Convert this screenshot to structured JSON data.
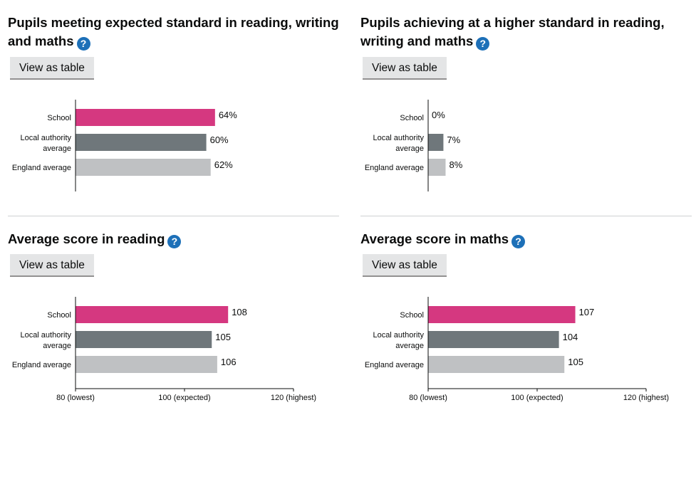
{
  "help_icon_glyph": "?",
  "colors": {
    "school": "#d53880",
    "local": "#6f777b",
    "england": "#bfc1c3",
    "help": "#1d70b8"
  },
  "charts": [
    {
      "title": "Pupils meeting expected standard in reading, writing and maths",
      "button_label": "View as table",
      "chart_data": {
        "type": "bar",
        "orientation": "horizontal",
        "categories": [
          "School",
          "Local authority average",
          "England average"
        ],
        "values": [
          64,
          60,
          62
        ],
        "value_labels": [
          "64%",
          "60%",
          "62%"
        ],
        "xlim": [
          0,
          100
        ],
        "ticks": []
      }
    },
    {
      "title": "Pupils achieving at a higher standard in reading, writing and maths",
      "button_label": "View as table",
      "chart_data": {
        "type": "bar",
        "orientation": "horizontal",
        "categories": [
          "School",
          "Local authority average",
          "England average"
        ],
        "values": [
          0,
          7,
          8
        ],
        "value_labels": [
          "0%",
          "7%",
          "8%"
        ],
        "xlim": [
          0,
          100
        ],
        "ticks": []
      }
    },
    {
      "title": "Average score in reading",
      "button_label": "View as table",
      "chart_data": {
        "type": "bar",
        "orientation": "horizontal",
        "categories": [
          "School",
          "Local authority average",
          "England average"
        ],
        "values": [
          108,
          105,
          106
        ],
        "value_labels": [
          "108",
          "105",
          "106"
        ],
        "xlim": [
          80,
          120
        ],
        "ticks": [
          {
            "value": 80,
            "label": "80 (lowest)"
          },
          {
            "value": 100,
            "label": "100 (expected)"
          },
          {
            "value": 120,
            "label": "120 (highest)"
          }
        ]
      }
    },
    {
      "title": "Average score in maths",
      "button_label": "View as table",
      "chart_data": {
        "type": "bar",
        "orientation": "horizontal",
        "categories": [
          "School",
          "Local authority average",
          "England average"
        ],
        "values": [
          107,
          104,
          105
        ],
        "value_labels": [
          "107",
          "104",
          "105"
        ],
        "xlim": [
          80,
          120
        ],
        "ticks": [
          {
            "value": 80,
            "label": "80 (lowest)"
          },
          {
            "value": 100,
            "label": "100 (expected)"
          },
          {
            "value": 120,
            "label": "120 (highest)"
          }
        ]
      }
    }
  ]
}
